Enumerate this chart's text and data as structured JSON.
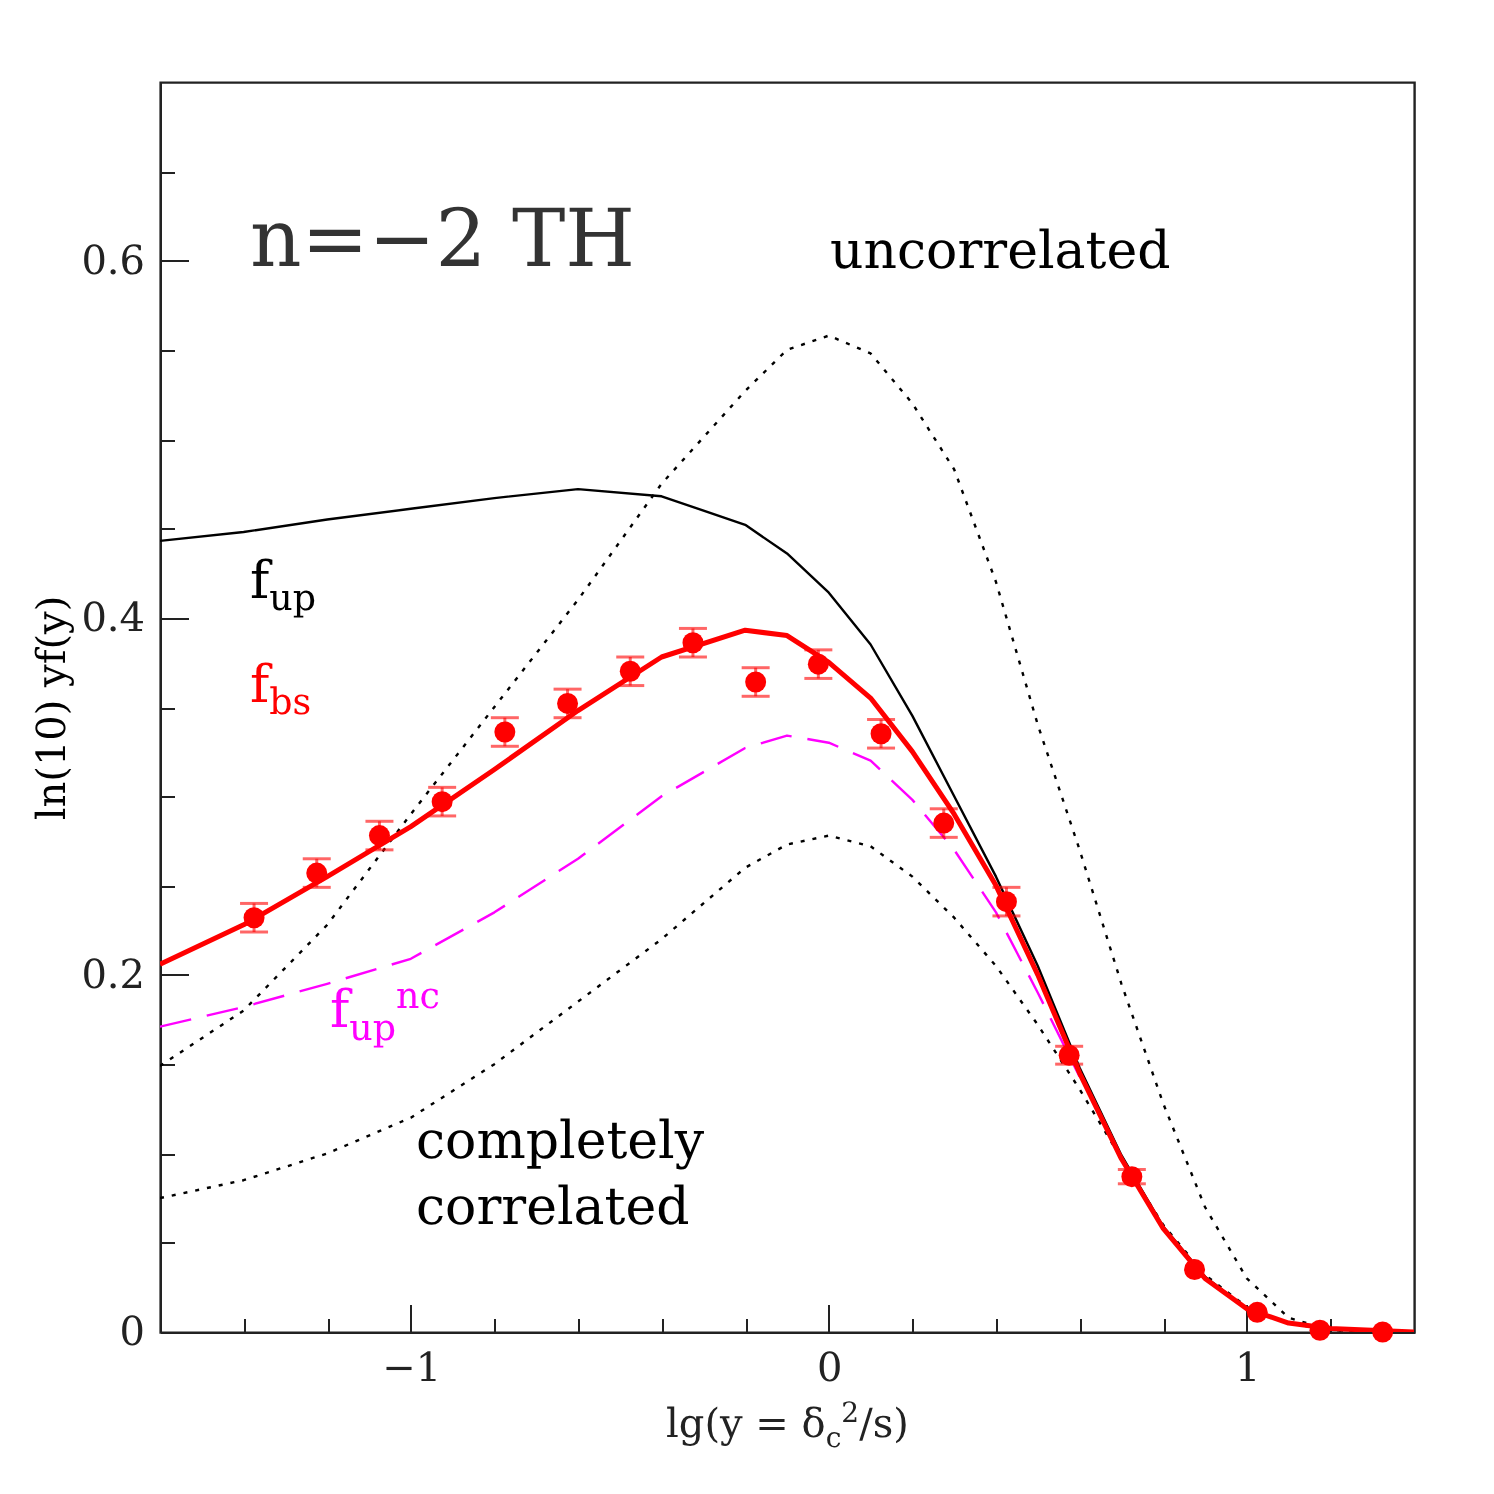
{
  "chart_data": {
    "type": "line",
    "xlabel": "lg(y = δ$_{c}$$^{2}$/s)",
    "ylabel": "ln(10)   yf(y)",
    "annotations": [
      "n=−2 TH"
    ],
    "xlim": [
      -1.6,
      1.4
    ],
    "ylim": [
      0,
      0.7
    ],
    "xticks": [
      {
        "value": -1.4,
        "label": null
      },
      {
        "value": -1.2,
        "label": null
      },
      -1,
      {
        "value": -0.8,
        "label": null
      },
      {
        "value": -0.6,
        "label": null
      },
      {
        "value": -0.4,
        "label": null
      },
      {
        "value": -0.2,
        "label": null
      },
      0,
      {
        "value": 0.2,
        "label": null
      },
      {
        "value": 0.4,
        "label": null
      },
      {
        "value": 0.6,
        "label": null
      },
      {
        "value": 0.8,
        "label": null
      },
      1,
      {
        "value": 1.2,
        "label": null
      }
    ],
    "yticks": [
      0,
      {
        "value": 0.05,
        "label": null
      },
      {
        "value": 0.1,
        "label": null
      },
      {
        "value": 0.15,
        "label": null
      },
      0.2,
      {
        "value": 0.25,
        "label": null
      },
      {
        "value": 0.3,
        "label": null
      },
      {
        "value": 0.35,
        "label": null
      },
      0.4,
      {
        "value": 0.45,
        "label": null
      },
      {
        "value": 0.5,
        "label": null
      },
      {
        "value": 0.55,
        "label": null
      },
      0.6,
      {
        "value": 0.65,
        "label": null
      }
    ],
    "grid": false,
    "x": [
      -1.6,
      -1.4,
      -1.2,
      -1.0,
      -0.8,
      -0.6,
      -0.4,
      -0.2,
      -0.1,
      0,
      0.1,
      0.2,
      0.3,
      0.4,
      0.5,
      0.6,
      0.7,
      0.8,
      0.9,
      1.0,
      1.1,
      1.2,
      1.4
    ],
    "series": [
      {
        "name": "uncorrelated",
        "color": "#000000",
        "line_style": "dotted",
        "values": [
          0.149,
          0.18,
          0.228,
          0.29,
          0.35,
          0.41,
          0.475,
          0.527,
          0.55,
          0.558,
          0.548,
          0.52,
          0.483,
          0.42,
          0.34,
          0.27,
          0.195,
          0.128,
          0.07,
          0.03,
          0.008,
          0.001,
          0
        ]
      },
      {
        "name": "completely correlated",
        "color": "#000000",
        "line_style": "dotted",
        "values": [
          0.075,
          0.085,
          0.1,
          0.12,
          0.15,
          0.185,
          0.22,
          0.26,
          0.273,
          0.278,
          0.272,
          0.255,
          0.232,
          0.205,
          0.172,
          0.136,
          0.097,
          0.06,
          0.032,
          0.014,
          0.005,
          0.001,
          0
        ]
      },
      {
        "name": "f$_{up}$",
        "color": "#000000",
        "line_style": "solid",
        "values": [
          0.443,
          0.448,
          0.455,
          0.461,
          0.467,
          0.472,
          0.468,
          0.452,
          0.436,
          0.414,
          0.385,
          0.345,
          0.3,
          0.255,
          0.205,
          0.148,
          0.099,
          0.059,
          0.031,
          0.013,
          0.005,
          0.002,
          0
        ]
      },
      {
        "name": "f$_{up}$$^{nc}$",
        "color": "#ff00ff",
        "line_style": "dashed",
        "values": [
          0.171,
          0.182,
          0.195,
          0.209,
          0.235,
          0.265,
          0.3,
          0.327,
          0.334,
          0.33,
          0.32,
          0.298,
          0.27,
          0.235,
          0.19,
          0.143,
          null,
          null,
          null,
          null,
          null,
          null,
          null
        ]
      },
      {
        "name": "f$_{bs}$",
        "color": "#ff0000",
        "line_style": "solid",
        "values": [
          0.206,
          0.228,
          0.255,
          0.283,
          0.315,
          0.348,
          0.378,
          0.393,
          0.39,
          0.375,
          0.355,
          0.325,
          0.29,
          0.25,
          0.2,
          0.145,
          0.097,
          0.058,
          0.03,
          0.013,
          0.005,
          0.002,
          0
        ]
      },
      {
        "type": "scatter",
        "color": "#ff0000",
        "marker": "circle",
        "x": [
          -1.375,
          -1.225,
          -1.075,
          -0.925,
          -0.775,
          -0.625,
          -0.475,
          -0.325,
          -0.175,
          -0.025,
          0.125,
          0.275,
          0.425,
          0.575,
          0.725,
          0.875,
          1.025,
          1.175,
          1.325
        ],
        "values": [
          0.232,
          0.257,
          0.278,
          0.297,
          0.336,
          0.352,
          0.37,
          0.386,
          0.364,
          0.374,
          0.335,
          0.285,
          0.241,
          0.155,
          0.087,
          0.035,
          0.011,
          0.001,
          0
        ],
        "errors": [
          0.008,
          0.008,
          0.008,
          0.008,
          0.008,
          0.008,
          0.008,
          0.008,
          0.008,
          0.008,
          0.008,
          0.008,
          0.008,
          0.005,
          0.004,
          null,
          null,
          null,
          null
        ]
      }
    ]
  }
}
